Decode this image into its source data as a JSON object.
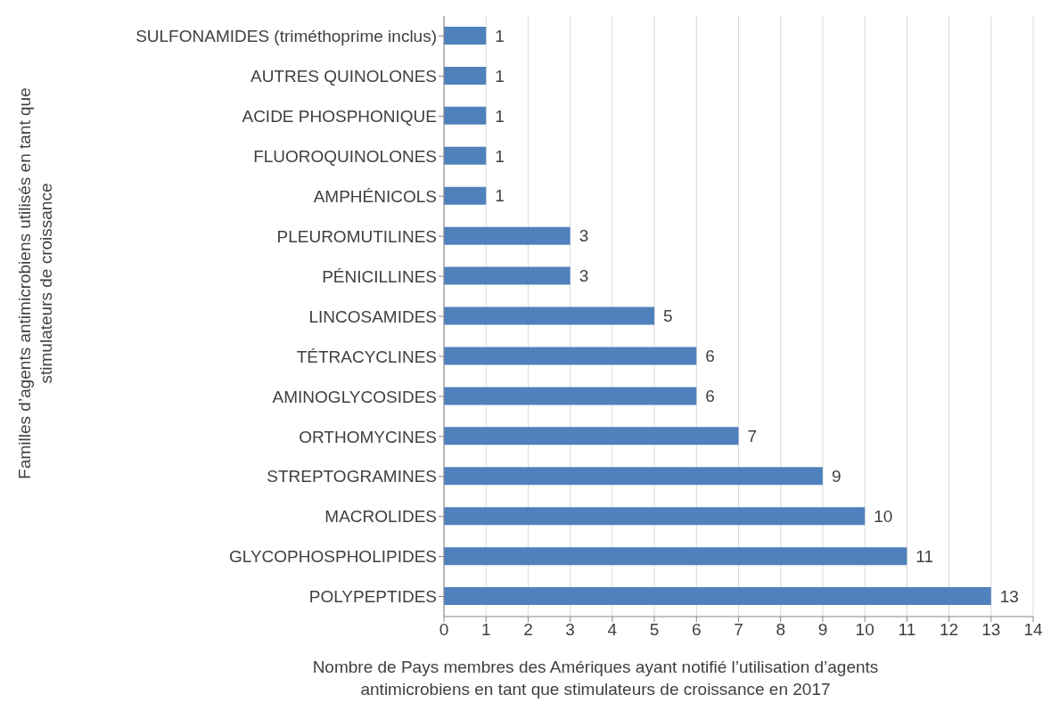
{
  "chart_data": {
    "type": "bar",
    "orientation": "horizontal",
    "categories": [
      "SULFONAMIDES (triméthoprime inclus)",
      "AUTRES QUINOLONES",
      "ACIDE PHOSPHONIQUE",
      "FLUOROQUINOLONES",
      "AMPHÉNICOLS",
      "PLEUROMUTILINES",
      "PÉNICILLINES",
      "LINCOSAMIDES",
      "TÉTRACYCLINES",
      "AMINOGLYCOSIDES",
      "ORTHOMYCINES",
      "STREPTOGRAMINES",
      "MACROLIDES",
      "GLYCOPHOSPHOLIPIDES",
      "POLYPEPTIDES"
    ],
    "values": [
      1,
      1,
      1,
      1,
      1,
      3,
      3,
      5,
      6,
      6,
      7,
      9,
      10,
      11,
      13
    ],
    "color": "#4f81bd",
    "xlim": [
      0,
      14
    ],
    "xticks": [
      0,
      1,
      2,
      3,
      4,
      5,
      6,
      7,
      8,
      9,
      10,
      11,
      12,
      13,
      14
    ],
    "grid": "x",
    "data_labels": true,
    "xlabel": "Nombre de Pays membres des Amériques ayant notifié l’utilisation d’agents antimicrobiens en tant que stimulateurs de croissance en 2017",
    "ylabel": "Familles d’agents antimicrobiens utilisés en tant que stimulateurs de croissance"
  }
}
